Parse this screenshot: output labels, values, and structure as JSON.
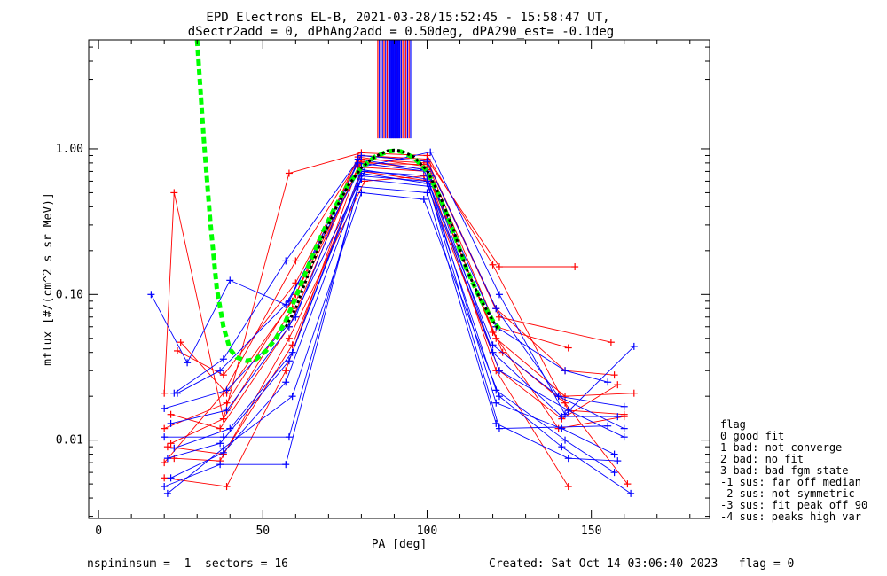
{
  "chart_data": {
    "type": "line",
    "title_lines": [
      "EPD Electrons EL-B, 2021-03-28/15:52:45 - 15:58:47 UT,",
      "dSectr2add = 0, dPhAng2add = 0.50deg, dPA290_est=  -0.1deg"
    ],
    "xlabel": "PA [deg]",
    "ylabel": "mflux [#/(cm^2 s sr MeV)]",
    "x_scale": "linear",
    "y_scale": "log",
    "xlim": [
      -3,
      186
    ],
    "ylim": [
      0.0029,
      5.6
    ],
    "x_ticks": [
      0,
      50,
      100,
      150
    ],
    "x_tick_labels": [
      "0",
      "50",
      "100",
      "150"
    ],
    "y_ticks": [
      0.01,
      0.1,
      1.0
    ],
    "y_tick_labels": [
      "0.01",
      "0.10",
      "1.00"
    ],
    "colors": {
      "red": "#ff0000",
      "blue": "#0000ff",
      "green": "#00ff00",
      "black": "#000000"
    },
    "series": [
      {
        "color": "red",
        "x": [
          20,
          23,
          38,
          58,
          80,
          100,
          120,
          143,
          160
        ],
        "y": [
          0.021,
          0.5,
          0.014,
          0.68,
          0.94,
          0.9,
          0.16,
          0.016,
          0.015
        ]
      },
      {
        "color": "red",
        "x": [
          20,
          38,
          60,
          80,
          100,
          122,
          145
        ],
        "y": [
          0.007,
          0.021,
          0.17,
          0.9,
          0.85,
          0.155,
          0.155
        ]
      },
      {
        "color": "red",
        "x": [
          22,
          37,
          58,
          80,
          100,
          121,
          143
        ],
        "y": [
          0.015,
          0.012,
          0.06,
          0.85,
          0.8,
          0.06,
          0.043
        ]
      },
      {
        "color": "red",
        "x": [
          25,
          39,
          59,
          80,
          99,
          121,
          142,
          163
        ],
        "y": [
          0.047,
          0.021,
          0.09,
          0.8,
          0.78,
          0.05,
          0.02,
          0.021
        ]
      },
      {
        "color": "red",
        "x": [
          24,
          38,
          60,
          80,
          100,
          122,
          156
        ],
        "y": [
          0.041,
          0.028,
          0.12,
          0.9,
          0.82,
          0.07,
          0.047
        ]
      },
      {
        "color": "red",
        "x": [
          21,
          38,
          59,
          80,
          101,
          123,
          142,
          161
        ],
        "y": [
          0.009,
          0.008,
          0.045,
          0.7,
          0.6,
          0.04,
          0.018,
          0.005
        ]
      },
      {
        "color": "red",
        "x": [
          20,
          39,
          57,
          79,
          100,
          121,
          143
        ],
        "y": [
          0.0055,
          0.0048,
          0.03,
          0.75,
          0.7,
          0.03,
          0.0048
        ]
      },
      {
        "color": "red",
        "x": [
          22,
          38,
          59,
          80,
          100,
          120,
          140,
          160
        ],
        "y": [
          0.0095,
          0.014,
          0.08,
          0.82,
          0.72,
          0.055,
          0.012,
          0.0145
        ]
      },
      {
        "color": "red",
        "x": [
          23,
          37,
          58,
          81,
          99,
          122,
          141,
          158
        ],
        "y": [
          0.0075,
          0.0072,
          0.05,
          0.6,
          0.65,
          0.03,
          0.014,
          0.024
        ]
      },
      {
        "color": "red",
        "x": [
          20,
          39,
          60,
          79,
          101,
          121,
          142,
          157
        ],
        "y": [
          0.012,
          0.018,
          0.1,
          0.88,
          0.75,
          0.08,
          0.03,
          0.028
        ]
      },
      {
        "color": "blue",
        "x": [
          16,
          27,
          40,
          57,
          80,
          101,
          122,
          142,
          163
        ],
        "y": [
          0.1,
          0.034,
          0.125,
          0.085,
          0.75,
          0.95,
          0.1,
          0.015,
          0.044
        ]
      },
      {
        "color": "blue",
        "x": [
          23,
          38,
          57,
          80,
          100,
          121,
          140,
          160
        ],
        "y": [
          0.021,
          0.036,
          0.17,
          0.9,
          0.82,
          0.08,
          0.02,
          0.012
        ]
      },
      {
        "color": "blue",
        "x": [
          20,
          38,
          58,
          80,
          100,
          122,
          155
        ],
        "y": [
          0.0105,
          0.0105,
          0.0105,
          0.65,
          0.6,
          0.012,
          0.0125
        ]
      },
      {
        "color": "blue",
        "x": [
          20,
          37,
          57,
          79,
          100,
          121,
          143,
          158
        ],
        "y": [
          0.0048,
          0.0068,
          0.0068,
          0.55,
          0.5,
          0.013,
          0.0075,
          0.0072
        ]
      },
      {
        "color": "blue",
        "x": [
          21,
          38,
          59,
          80,
          99,
          122,
          141,
          162
        ],
        "y": [
          0.0043,
          0.0088,
          0.02,
          0.5,
          0.45,
          0.02,
          0.009,
          0.0043
        ]
      },
      {
        "color": "blue",
        "x": [
          22,
          39,
          58,
          81,
          101,
          120,
          141,
          158
        ],
        "y": [
          0.013,
          0.016,
          0.06,
          0.7,
          0.65,
          0.04,
          0.0145,
          0.0145
        ]
      },
      {
        "color": "blue",
        "x": [
          24,
          37,
          58,
          79,
          100,
          121,
          142,
          155
        ],
        "y": [
          0.021,
          0.03,
          0.09,
          0.8,
          0.7,
          0.06,
          0.03,
          0.025
        ]
      },
      {
        "color": "blue",
        "x": [
          23,
          40,
          59,
          80,
          100,
          122,
          143,
          160
        ],
        "y": [
          0.0088,
          0.012,
          0.04,
          0.72,
          0.62,
          0.03,
          0.016,
          0.0105
        ]
      },
      {
        "color": "blue",
        "x": [
          22,
          38,
          57,
          80,
          101,
          121,
          141,
          157
        ],
        "y": [
          0.0055,
          0.0082,
          0.025,
          0.62,
          0.55,
          0.018,
          0.012,
          0.008
        ]
      },
      {
        "color": "blue",
        "x": [
          20,
          39,
          60,
          79,
          99,
          120,
          140,
          160
        ],
        "y": [
          0.0165,
          0.022,
          0.07,
          0.85,
          0.72,
          0.045,
          0.02,
          0.017
        ]
      },
      {
        "color": "blue",
        "x": [
          21,
          37,
          58,
          80,
          100,
          121,
          142,
          157
        ],
        "y": [
          0.0075,
          0.0095,
          0.035,
          0.68,
          0.58,
          0.022,
          0.01,
          0.006
        ]
      }
    ],
    "fit_curves": [
      {
        "color": "green",
        "style": "dashed",
        "x": [
          30,
          32,
          34,
          36,
          38,
          40,
          42,
          45,
          48,
          51,
          54,
          57,
          60,
          64,
          68,
          72,
          76,
          80,
          84,
          88,
          90,
          92,
          96,
          100,
          104,
          108,
          112,
          116,
          120,
          122
        ],
        "y": [
          5.6,
          1.2,
          0.32,
          0.11,
          0.06,
          0.042,
          0.037,
          0.035,
          0.036,
          0.041,
          0.05,
          0.066,
          0.095,
          0.16,
          0.26,
          0.4,
          0.57,
          0.74,
          0.88,
          0.96,
          0.97,
          0.96,
          0.87,
          0.7,
          0.46,
          0.27,
          0.15,
          0.095,
          0.066,
          0.058
        ]
      },
      {
        "color": "black",
        "style": "dotted",
        "x": [
          57,
          60,
          64,
          68,
          72,
          76,
          80,
          84,
          88,
          90,
          92,
          96,
          100,
          104,
          108,
          112,
          116,
          120,
          122
        ],
        "y": [
          0.06,
          0.08,
          0.14,
          0.24,
          0.38,
          0.56,
          0.74,
          0.88,
          0.97,
          0.98,
          0.97,
          0.88,
          0.71,
          0.47,
          0.28,
          0.15,
          0.095,
          0.066,
          0.056
        ]
      }
    ],
    "peak_markers": {
      "x_range": [
        85,
        95
      ],
      "count": 22,
      "colors": [
        "red",
        "blue"
      ],
      "y_bottom": 1.18,
      "y_top": 5.6
    },
    "legend": {
      "placement": "right",
      "title": "flag",
      "entries": [
        " 0 good fit",
        " 1 bad: not converge",
        " 2 bad: no fit",
        " 3 bad: bad fgm state",
        "-1 sus: far off median",
        "-2 sus: not symmetric",
        "-3 sus: fit peak off 90",
        "-4 sus: peaks high var"
      ]
    },
    "footer": {
      "left": "nspininsum =  1  sectors = 16",
      "right": "Created: Sat Oct 14 03:06:40 2023   flag = 0"
    }
  }
}
